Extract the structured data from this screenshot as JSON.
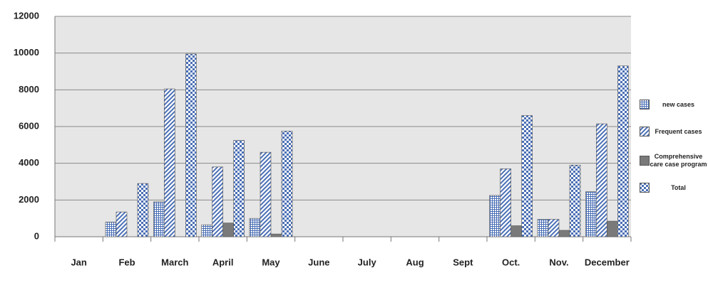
{
  "chart_data": {
    "type": "bar",
    "categories": [
      "Jan",
      "Feb",
      "March",
      "April",
      "May",
      "June",
      "July",
      "Aug",
      "Sept",
      "Oct.",
      "Nov.",
      "December"
    ],
    "series": [
      {
        "name": "new cases",
        "color": "#4a6fb5",
        "pattern": "grid",
        "values": [
          0,
          800,
          1900,
          650,
          1000,
          0,
          0,
          0,
          0,
          2250,
          950,
          2450
        ]
      },
      {
        "name": "Frequent cases",
        "color": "#4a6fb5",
        "pattern": "diagonal",
        "values": [
          0,
          1350,
          8050,
          3800,
          4600,
          0,
          0,
          0,
          0,
          3700,
          950,
          6150
        ]
      },
      {
        "name": "Comprehensive care case program",
        "color": "#7a7a7a",
        "pattern": "solid",
        "values": [
          0,
          0,
          0,
          750,
          150,
          0,
          0,
          0,
          0,
          600,
          350,
          850
        ]
      },
      {
        "name": "Total",
        "color": "#4a6fb5",
        "pattern": "checker",
        "values": [
          0,
          2900,
          9950,
          5250,
          5750,
          0,
          0,
          0,
          0,
          6600,
          3900,
          9300
        ]
      }
    ],
    "ylim": [
      0,
      12000
    ],
    "yticks": [
      0,
      2000,
      4000,
      6000,
      8000,
      10000,
      12000
    ],
    "grid": true,
    "legend": "right"
  }
}
